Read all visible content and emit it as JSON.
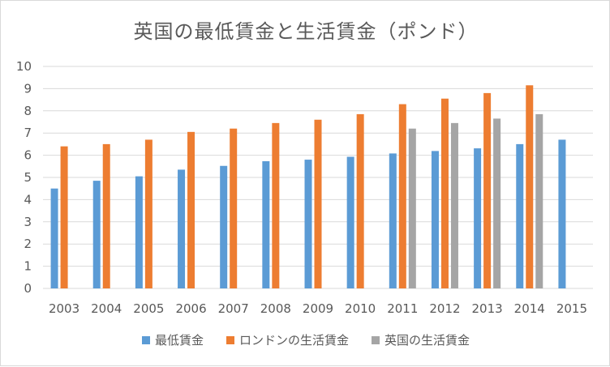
{
  "chart_data": {
    "type": "bar",
    "title": "英国の最低賃金と生活賃金（ポンド）",
    "categories": [
      "2003",
      "2004",
      "2005",
      "2006",
      "2007",
      "2008",
      "2009",
      "2010",
      "2011",
      "2012",
      "2013",
      "2014",
      "2015"
    ],
    "series": [
      {
        "name": "最低賃金",
        "color": "#5B9BD5",
        "values": [
          4.5,
          4.85,
          5.05,
          5.35,
          5.52,
          5.73,
          5.8,
          5.93,
          6.08,
          6.19,
          6.31,
          6.5,
          6.7
        ]
      },
      {
        "name": "ロンドンの生活賃金",
        "color": "#ED7D31",
        "values": [
          6.4,
          6.5,
          6.7,
          7.05,
          7.2,
          7.45,
          7.6,
          7.85,
          8.3,
          8.55,
          8.8,
          9.15,
          null
        ]
      },
      {
        "name": "英国の生活賃金",
        "color": "#A5A5A5",
        "values": [
          null,
          null,
          null,
          null,
          null,
          null,
          null,
          null,
          7.2,
          7.45,
          7.65,
          7.85,
          null
        ]
      }
    ],
    "yticks": [
      "0",
      "1",
      "2",
      "3",
      "4",
      "5",
      "6",
      "7",
      "8",
      "9",
      "10"
    ],
    "ylim": [
      0,
      10
    ],
    "grid": true,
    "legend_position": "bottom"
  }
}
